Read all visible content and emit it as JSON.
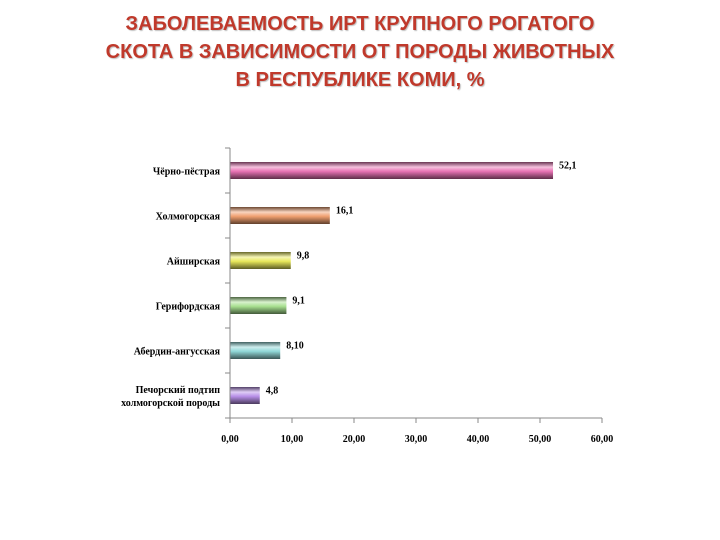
{
  "slide": {
    "title_lines": [
      "ЗАБОЛЕВАЕМОСТЬ ИРТ КРУПНОГО РОГАТОГО",
      "СКОТА В ЗАВИСИМОСТИ ОТ ПОРОДЫ ЖИВОТНЫХ",
      "В РЕСПУБЛИКЕ КОМИ, %"
    ],
    "title_color": "#c0392b"
  },
  "chart_data": {
    "type": "bar",
    "orientation": "horizontal",
    "categories": [
      [
        "Чёрно-пёстрая"
      ],
      [
        "Холмогорская"
      ],
      [
        "Айширская"
      ],
      [
        "Герифордская"
      ],
      [
        "Абердин-ангусская"
      ],
      [
        "Печорский подтип",
        "холмогорской породы"
      ]
    ],
    "values": [
      52.1,
      16.1,
      9.8,
      9.1,
      8.1,
      4.8
    ],
    "value_labels": [
      "52,1",
      "16,1",
      "9,8",
      "9,1",
      "8,10",
      "4,8"
    ],
    "bar_colors": [
      "#e873b4",
      "#f0a070",
      "#e8e85a",
      "#a8e090",
      "#90d8d8",
      "#b890e8"
    ],
    "x_ticks": [
      0,
      10,
      20,
      30,
      40,
      50,
      60
    ],
    "x_tick_labels": [
      "0,00",
      "10,00",
      "20,00",
      "30,00",
      "40,00",
      "50,00",
      "60,00"
    ],
    "xlim": [
      0,
      60
    ],
    "grid": false,
    "legend": "none"
  }
}
